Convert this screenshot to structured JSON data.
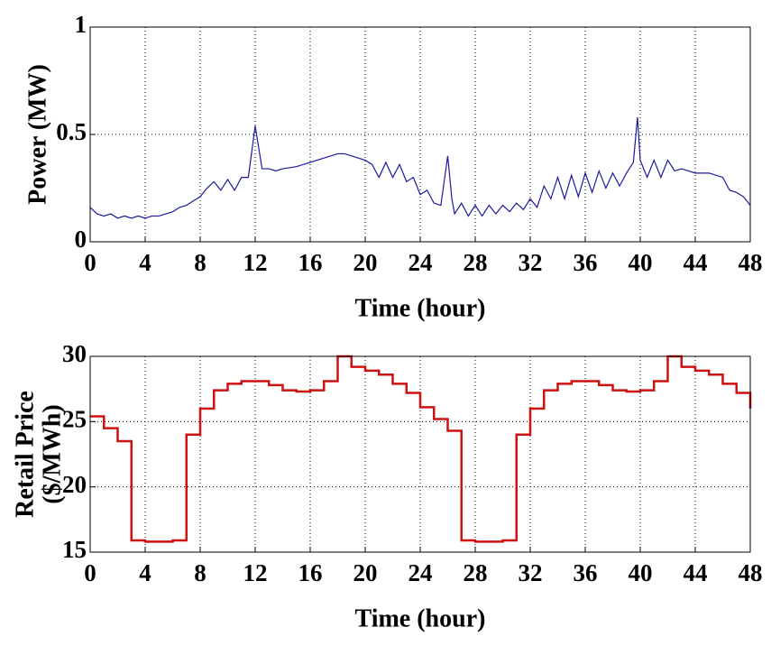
{
  "chart_data": [
    {
      "type": "line",
      "xlabel": "Time (hour)",
      "ylabel": "Power (MW)",
      "color": "#1a1a9e",
      "grid": true,
      "xlim": [
        0,
        48
      ],
      "xticks": [
        0,
        4,
        8,
        12,
        16,
        20,
        24,
        28,
        32,
        36,
        40,
        44,
        48
      ],
      "ylim": [
        0,
        1
      ],
      "yticks": [
        0,
        0.5,
        1
      ],
      "x": [
        0,
        0.5,
        1,
        1.5,
        2,
        2.5,
        3,
        3.5,
        4,
        4.5,
        5,
        5.5,
        6,
        6.5,
        7,
        7.5,
        8,
        8.5,
        9,
        9.5,
        10,
        10.5,
        11,
        11.5,
        12,
        12.5,
        13,
        13.5,
        14,
        15,
        16,
        17,
        18,
        18.5,
        19,
        20,
        20.5,
        21,
        21.5,
        22,
        22.5,
        23,
        23.5,
        24,
        24.5,
        25,
        25.5,
        26,
        26.3,
        26.5,
        27,
        27.5,
        28,
        28.5,
        29,
        29.5,
        30,
        30.5,
        31,
        31.5,
        32,
        32.5,
        33,
        33.5,
        34,
        34.5,
        35,
        35.5,
        36,
        36.5,
        37,
        37.5,
        38,
        38.5,
        39,
        39.5,
        39.8,
        40,
        40.5,
        41,
        41.5,
        42,
        42.5,
        43,
        44,
        45,
        45.5,
        46,
        46.5,
        47,
        47.5,
        48
      ],
      "values": [
        0.16,
        0.13,
        0.12,
        0.13,
        0.11,
        0.12,
        0.11,
        0.12,
        0.11,
        0.12,
        0.12,
        0.13,
        0.14,
        0.16,
        0.17,
        0.19,
        0.21,
        0.25,
        0.28,
        0.24,
        0.29,
        0.24,
        0.3,
        0.3,
        0.54,
        0.34,
        0.34,
        0.33,
        0.34,
        0.35,
        0.37,
        0.39,
        0.41,
        0.41,
        0.4,
        0.38,
        0.36,
        0.3,
        0.37,
        0.3,
        0.36,
        0.28,
        0.3,
        0.22,
        0.24,
        0.18,
        0.17,
        0.4,
        0.2,
        0.13,
        0.18,
        0.12,
        0.17,
        0.12,
        0.17,
        0.13,
        0.17,
        0.14,
        0.18,
        0.15,
        0.2,
        0.16,
        0.26,
        0.2,
        0.3,
        0.2,
        0.31,
        0.21,
        0.32,
        0.23,
        0.33,
        0.25,
        0.32,
        0.26,
        0.32,
        0.37,
        0.58,
        0.38,
        0.3,
        0.38,
        0.3,
        0.38,
        0.33,
        0.34,
        0.32,
        0.32,
        0.31,
        0.3,
        0.24,
        0.23,
        0.21,
        0.17
      ]
    },
    {
      "type": "step",
      "xlabel": "Time (hour)",
      "ylabel": [
        "Retail Price",
        "($/MWh)"
      ],
      "color": "#cc1111",
      "grid": true,
      "xlim": [
        0,
        48
      ],
      "xticks": [
        0,
        4,
        8,
        12,
        16,
        20,
        24,
        28,
        32,
        36,
        40,
        44,
        48
      ],
      "ylim": [
        15,
        30
      ],
      "yticks": [
        15,
        20,
        25,
        30
      ],
      "x": [
        0,
        1,
        2,
        3,
        4,
        5,
        6,
        7,
        8,
        9,
        10,
        11,
        12,
        13,
        14,
        15,
        16,
        17,
        18,
        19,
        20,
        21,
        22,
        23,
        24,
        25,
        26,
        27,
        28,
        29,
        30,
        31,
        32,
        33,
        34,
        35,
        36,
        37,
        38,
        39,
        40,
        41,
        42,
        43,
        44,
        45,
        46,
        47,
        48
      ],
      "values": [
        25.4,
        24.5,
        23.5,
        15.9,
        15.8,
        15.8,
        15.9,
        24,
        26,
        27.4,
        27.9,
        28.1,
        28.1,
        27.8,
        27.4,
        27.3,
        27.4,
        28.1,
        30,
        29.2,
        28.9,
        28.6,
        27.9,
        27.2,
        26.1,
        25.2,
        24.3,
        15.9,
        15.8,
        15.8,
        15.9,
        24,
        26,
        27.4,
        27.9,
        28.1,
        28.1,
        27.8,
        27.4,
        27.3,
        27.4,
        28.1,
        30,
        29.2,
        28.9,
        28.6,
        27.9,
        27.2,
        26
      ]
    }
  ]
}
